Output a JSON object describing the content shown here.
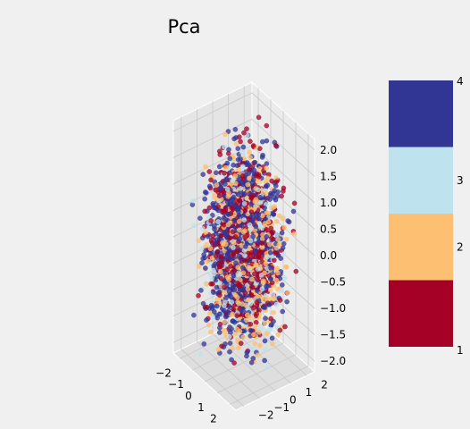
{
  "chart_data": {
    "type": "scatter",
    "subtype": "3d-scatter",
    "title": "Pca",
    "xlabel": "",
    "ylabel": "",
    "zlabel": "",
    "x_ticks": [
      "−2",
      "−1",
      "0",
      "1",
      "2"
    ],
    "y_ticks": [
      "−2",
      "−1",
      "0",
      "1",
      "2"
    ],
    "z_ticks": [
      "−2.0",
      "−1.5",
      "−1.0",
      "−0.5",
      "0.0",
      "0.5",
      "1.0",
      "1.5",
      "2.0"
    ],
    "xlim": [
      -2.5,
      2.5
    ],
    "ylim": [
      -2.5,
      2.5
    ],
    "zlim": [
      -2.2,
      2.2
    ],
    "grid": true,
    "point_count": 2600,
    "classes": [
      {
        "label": "4",
        "color": "#313695",
        "share": 0.55
      },
      {
        "label": "3",
        "color": "#bfe2ef",
        "share": 0.13
      },
      {
        "label": "2",
        "color": "#fdbf71",
        "share": 0.14
      },
      {
        "label": "1",
        "color": "#a50026",
        "share": 0.18
      }
    ],
    "colorbar": {
      "placement": "right",
      "ticks": [
        "4",
        "3",
        "2",
        "1"
      ],
      "colors": [
        "#313695",
        "#bfe2ef",
        "#fdbf71",
        "#a50026"
      ]
    }
  }
}
